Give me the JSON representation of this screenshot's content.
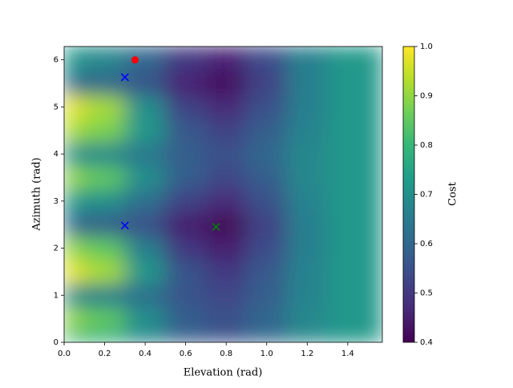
{
  "chart_data": {
    "type": "heatmap",
    "x_label": "Elevation (rad)",
    "y_label": "Azimuth (rad)",
    "colorbar_label": "Cost",
    "colormap": "viridis",
    "clim": [
      0.4,
      1.0
    ],
    "xlim": [
      0,
      1.5708
    ],
    "ylim": [
      0,
      6.2832
    ],
    "xticks": [
      {
        "value": 0,
        "label": "0.0"
      },
      0.2,
      0.4,
      0.6,
      0.8,
      {
        "value": 1,
        "label": "1.0"
      },
      1.2,
      1.4
    ],
    "yticks": [
      0,
      1,
      2,
      3,
      4,
      5,
      6
    ],
    "cticks": [
      0.4,
      0.5,
      0.6,
      0.7,
      0.8,
      0.9,
      {
        "value": 1,
        "label": "1.0"
      }
    ],
    "x": [
      0,
      0.2,
      0.4,
      0.6,
      0.8,
      1.0,
      1.2,
      1.4,
      1.57
    ],
    "y": [
      0,
      0.5,
      1.0,
      1.5,
      2.0,
      2.5,
      3.0,
      3.5,
      4.0,
      4.5,
      5.0,
      5.5,
      6.0
    ],
    "z": [
      [
        0.8,
        0.78,
        0.68,
        0.58,
        0.55,
        0.6,
        0.68,
        0.72,
        0.72
      ],
      [
        0.9,
        0.85,
        0.7,
        0.58,
        0.55,
        0.6,
        0.68,
        0.72,
        0.72
      ],
      [
        0.68,
        0.66,
        0.62,
        0.56,
        0.53,
        0.58,
        0.67,
        0.72,
        0.72
      ],
      [
        0.98,
        0.92,
        0.72,
        0.56,
        0.5,
        0.57,
        0.67,
        0.72,
        0.72
      ],
      [
        0.9,
        0.85,
        0.66,
        0.5,
        0.45,
        0.54,
        0.66,
        0.72,
        0.72
      ],
      [
        0.6,
        0.58,
        0.55,
        0.45,
        0.41,
        0.52,
        0.66,
        0.72,
        0.72
      ],
      [
        0.72,
        0.7,
        0.62,
        0.52,
        0.47,
        0.55,
        0.67,
        0.72,
        0.72
      ],
      [
        0.9,
        0.85,
        0.7,
        0.58,
        0.53,
        0.58,
        0.68,
        0.72,
        0.72
      ],
      [
        0.7,
        0.68,
        0.64,
        0.58,
        0.55,
        0.6,
        0.68,
        0.72,
        0.72
      ],
      [
        0.92,
        0.88,
        0.72,
        0.57,
        0.52,
        0.58,
        0.67,
        0.72,
        0.72
      ],
      [
        0.98,
        0.92,
        0.7,
        0.52,
        0.47,
        0.55,
        0.66,
        0.72,
        0.72
      ],
      [
        0.62,
        0.6,
        0.56,
        0.46,
        0.42,
        0.52,
        0.66,
        0.72,
        0.72
      ],
      [
        0.72,
        0.68,
        0.6,
        0.5,
        0.46,
        0.54,
        0.66,
        0.72,
        0.72
      ]
    ],
    "markers": [
      {
        "x": 0.35,
        "y": 6.0,
        "color": "#ff0000",
        "shape": "circle"
      },
      {
        "x": 0.3,
        "y": 5.63,
        "color": "#0000ff",
        "shape": "x"
      },
      {
        "x": 0.3,
        "y": 2.48,
        "color": "#0000ff",
        "shape": "x"
      },
      {
        "x": 0.75,
        "y": 2.45,
        "color": "#008000",
        "shape": "x"
      }
    ]
  }
}
